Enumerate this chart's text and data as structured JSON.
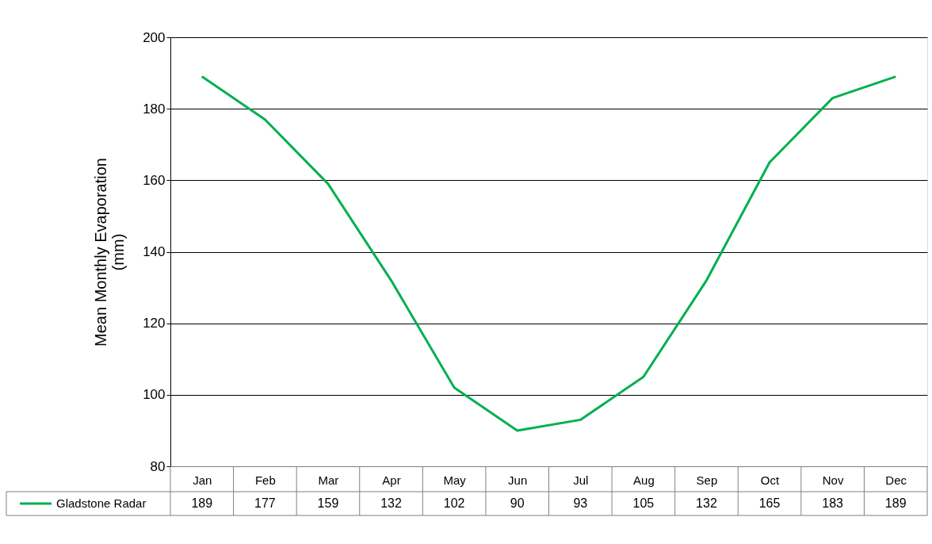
{
  "chart_data": {
    "type": "line",
    "ylabel": "Mean Monthly Evaporation (mm)",
    "categories": [
      "Jan",
      "Feb",
      "Mar",
      "Apr",
      "May",
      "Jun",
      "Jul",
      "Aug",
      "Sep",
      "Oct",
      "Nov",
      "Dec"
    ],
    "series": [
      {
        "name": "Gladstone Radar",
        "color": "#00b050",
        "values": [
          189,
          177,
          159,
          132,
          102,
          90,
          93,
          105,
          132,
          165,
          183,
          189
        ]
      }
    ],
    "ylim": [
      80,
      200
    ],
    "yticks": [
      80,
      100,
      120,
      140,
      160,
      180,
      200
    ],
    "grid": "y",
    "legend": "bottom left",
    "data_labels": true,
    "marker": "none",
    "line_style": "solid"
  }
}
